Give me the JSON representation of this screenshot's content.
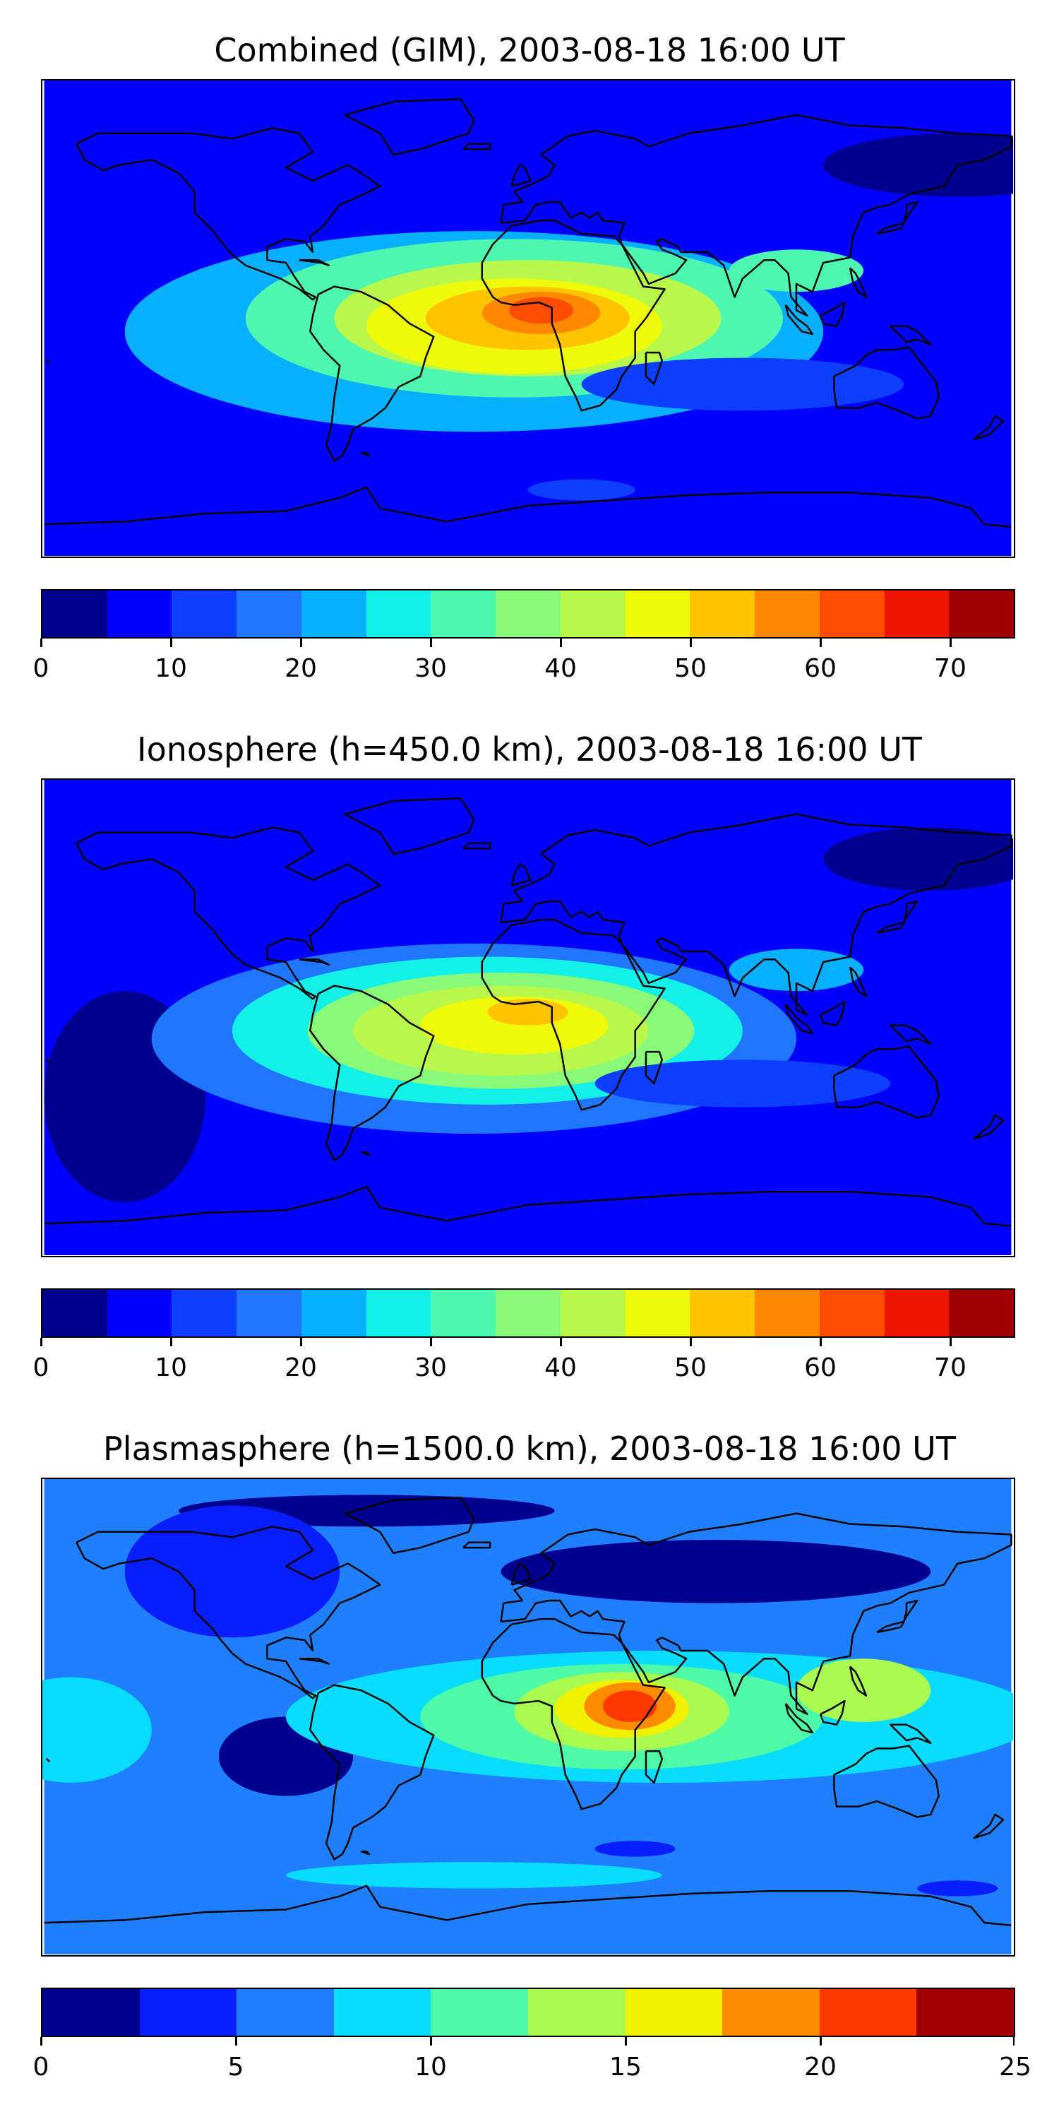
{
  "colors": {
    "ocean": "#0a1fff",
    "coast": "#000000"
  },
  "chart_data": [
    {
      "type": "heatmap",
      "title": "Combined (GIM), 2003-08-18 16:00 UT",
      "colorbar": {
        "ticks": [
          0,
          10,
          20,
          30,
          40,
          50,
          60,
          70
        ],
        "vmin": 0,
        "vmax": 75,
        "step": 5,
        "colors": [
          "#00008f",
          "#0000ff",
          "#0e3fff",
          "#1f77ff",
          "#08b0ff",
          "#12f0e8",
          "#4ef7b0",
          "#88fa78",
          "#b8f84a",
          "#eefa0a",
          "#ffc400",
          "#ff8800",
          "#ff4c00",
          "#ee1500",
          "#9e0000"
        ]
      },
      "background_level": "#0000ff",
      "features": [
        {
          "lon": -100,
          "lat": 55,
          "level": 1
        },
        {
          "lon": 40,
          "lat": 60,
          "level": 1
        },
        {
          "lon": 160,
          "lat": 58,
          "level": 0
        },
        {
          "lon": -20,
          "lat": -5,
          "level": 4,
          "rx": 130,
          "ry": 38
        },
        {
          "lon": -5,
          "lat": 0,
          "level": 6,
          "rx": 100,
          "ry": 30
        },
        {
          "lon": 0,
          "lat": 0,
          "level": 8,
          "rx": 72,
          "ry": 22
        },
        {
          "lon": -5,
          "lat": -3,
          "level": 9,
          "rx": 55,
          "ry": 18
        },
        {
          "lon": 0,
          "lat": 0,
          "level": 10,
          "rx": 38,
          "ry": 12
        },
        {
          "lon": 5,
          "lat": 2,
          "level": 11,
          "rx": 22,
          "ry": 8
        },
        {
          "lon": 5,
          "lat": 3,
          "level": 12,
          "rx": 12,
          "ry": 5
        },
        {
          "lon": 100,
          "lat": 18,
          "level": 6,
          "rx": 25,
          "ry": 8
        },
        {
          "lon": 80,
          "lat": -25,
          "level": 2,
          "rx": 60,
          "ry": 10
        },
        {
          "lon": 20,
          "lat": -65,
          "level": 2,
          "rx": 20,
          "ry": 4
        }
      ]
    },
    {
      "type": "heatmap",
      "title": "Ionosphere  (h=450.0 km), 2003-08-18 16:00 UT",
      "colorbar": {
        "ticks": [
          0,
          10,
          20,
          30,
          40,
          50,
          60,
          70
        ],
        "vmin": 0,
        "vmax": 75,
        "step": 5,
        "colors": [
          "#00008f",
          "#0000ff",
          "#0e3fff",
          "#1f77ff",
          "#08b0ff",
          "#12f0e8",
          "#4ef7b0",
          "#88fa78",
          "#b8f84a",
          "#eefa0a",
          "#ffc400",
          "#ff8800",
          "#ff4c00",
          "#ee1500",
          "#9e0000"
        ]
      },
      "background_level": "#0000ff",
      "features": [
        {
          "lon": -150,
          "lat": -30,
          "level": 0,
          "rx": 30,
          "ry": 40
        },
        {
          "lon": 150,
          "lat": 60,
          "level": 0,
          "rx": 40,
          "ry": 12
        },
        {
          "lon": -20,
          "lat": -8,
          "level": 3,
          "rx": 120,
          "ry": 36
        },
        {
          "lon": -15,
          "lat": -5,
          "level": 5,
          "rx": 95,
          "ry": 28
        },
        {
          "lon": -10,
          "lat": -5,
          "level": 7,
          "rx": 72,
          "ry": 22
        },
        {
          "lon": -10,
          "lat": -5,
          "level": 8,
          "rx": 55,
          "ry": 17
        },
        {
          "lon": -5,
          "lat": -3,
          "level": 9,
          "rx": 35,
          "ry": 11
        },
        {
          "lon": 0,
          "lat": 2,
          "level": 10,
          "rx": 15,
          "ry": 5
        },
        {
          "lon": 100,
          "lat": 18,
          "level": 4,
          "rx": 25,
          "ry": 8
        },
        {
          "lon": 80,
          "lat": -25,
          "level": 2,
          "rx": 55,
          "ry": 9
        }
      ]
    },
    {
      "type": "heatmap",
      "title": "Plasmasphere (h=1500.0 km), 2003-08-18 16:00 UT",
      "colorbar": {
        "ticks": [
          0,
          5,
          10,
          15,
          20,
          25
        ],
        "vmin": 0,
        "vmax": 25,
        "step": 2.5,
        "colors": [
          "#00008f",
          "#0a1fff",
          "#1f7fff",
          "#08dcff",
          "#4efaa6",
          "#a8fa50",
          "#f0f000",
          "#ff8c00",
          "#ff3800",
          "#a00000"
        ]
      },
      "background_level": "#1f7fff",
      "features": [
        {
          "lon": -60,
          "lat": 78,
          "level": 0,
          "rx": 70,
          "ry": 6
        },
        {
          "lon": 70,
          "lat": 55,
          "level": 0,
          "rx": 80,
          "ry": 12
        },
        {
          "lon": -110,
          "lat": 55,
          "level": 1,
          "rx": 40,
          "ry": 25
        },
        {
          "lon": -90,
          "lat": -15,
          "level": 0,
          "rx": 25,
          "ry": 15
        },
        {
          "lon": -170,
          "lat": -5,
          "level": 3,
          "rx": 30,
          "ry": 20
        },
        {
          "lon": 50,
          "lat": 0,
          "level": 3,
          "rx": 140,
          "ry": 25
        },
        {
          "lon": 35,
          "lat": 0,
          "level": 4,
          "rx": 75,
          "ry": 20
        },
        {
          "lon": 35,
          "lat": 2,
          "level": 5,
          "rx": 40,
          "ry": 15
        },
        {
          "lon": 125,
          "lat": 10,
          "level": 5,
          "rx": 25,
          "ry": 12
        },
        {
          "lon": 35,
          "lat": 3,
          "level": 6,
          "rx": 25,
          "ry": 11
        },
        {
          "lon": 38,
          "lat": 4,
          "level": 7,
          "rx": 17,
          "ry": 9
        },
        {
          "lon": 38,
          "lat": 4,
          "level": 8,
          "rx": 10,
          "ry": 6
        },
        {
          "lon": 40,
          "lat": -50,
          "level": 1,
          "rx": 15,
          "ry": 3
        },
        {
          "lon": 160,
          "lat": -65,
          "level": 1,
          "rx": 15,
          "ry": 3
        },
        {
          "lon": -20,
          "lat": -60,
          "level": 3,
          "rx": 70,
          "ry": 5
        }
      ]
    }
  ]
}
